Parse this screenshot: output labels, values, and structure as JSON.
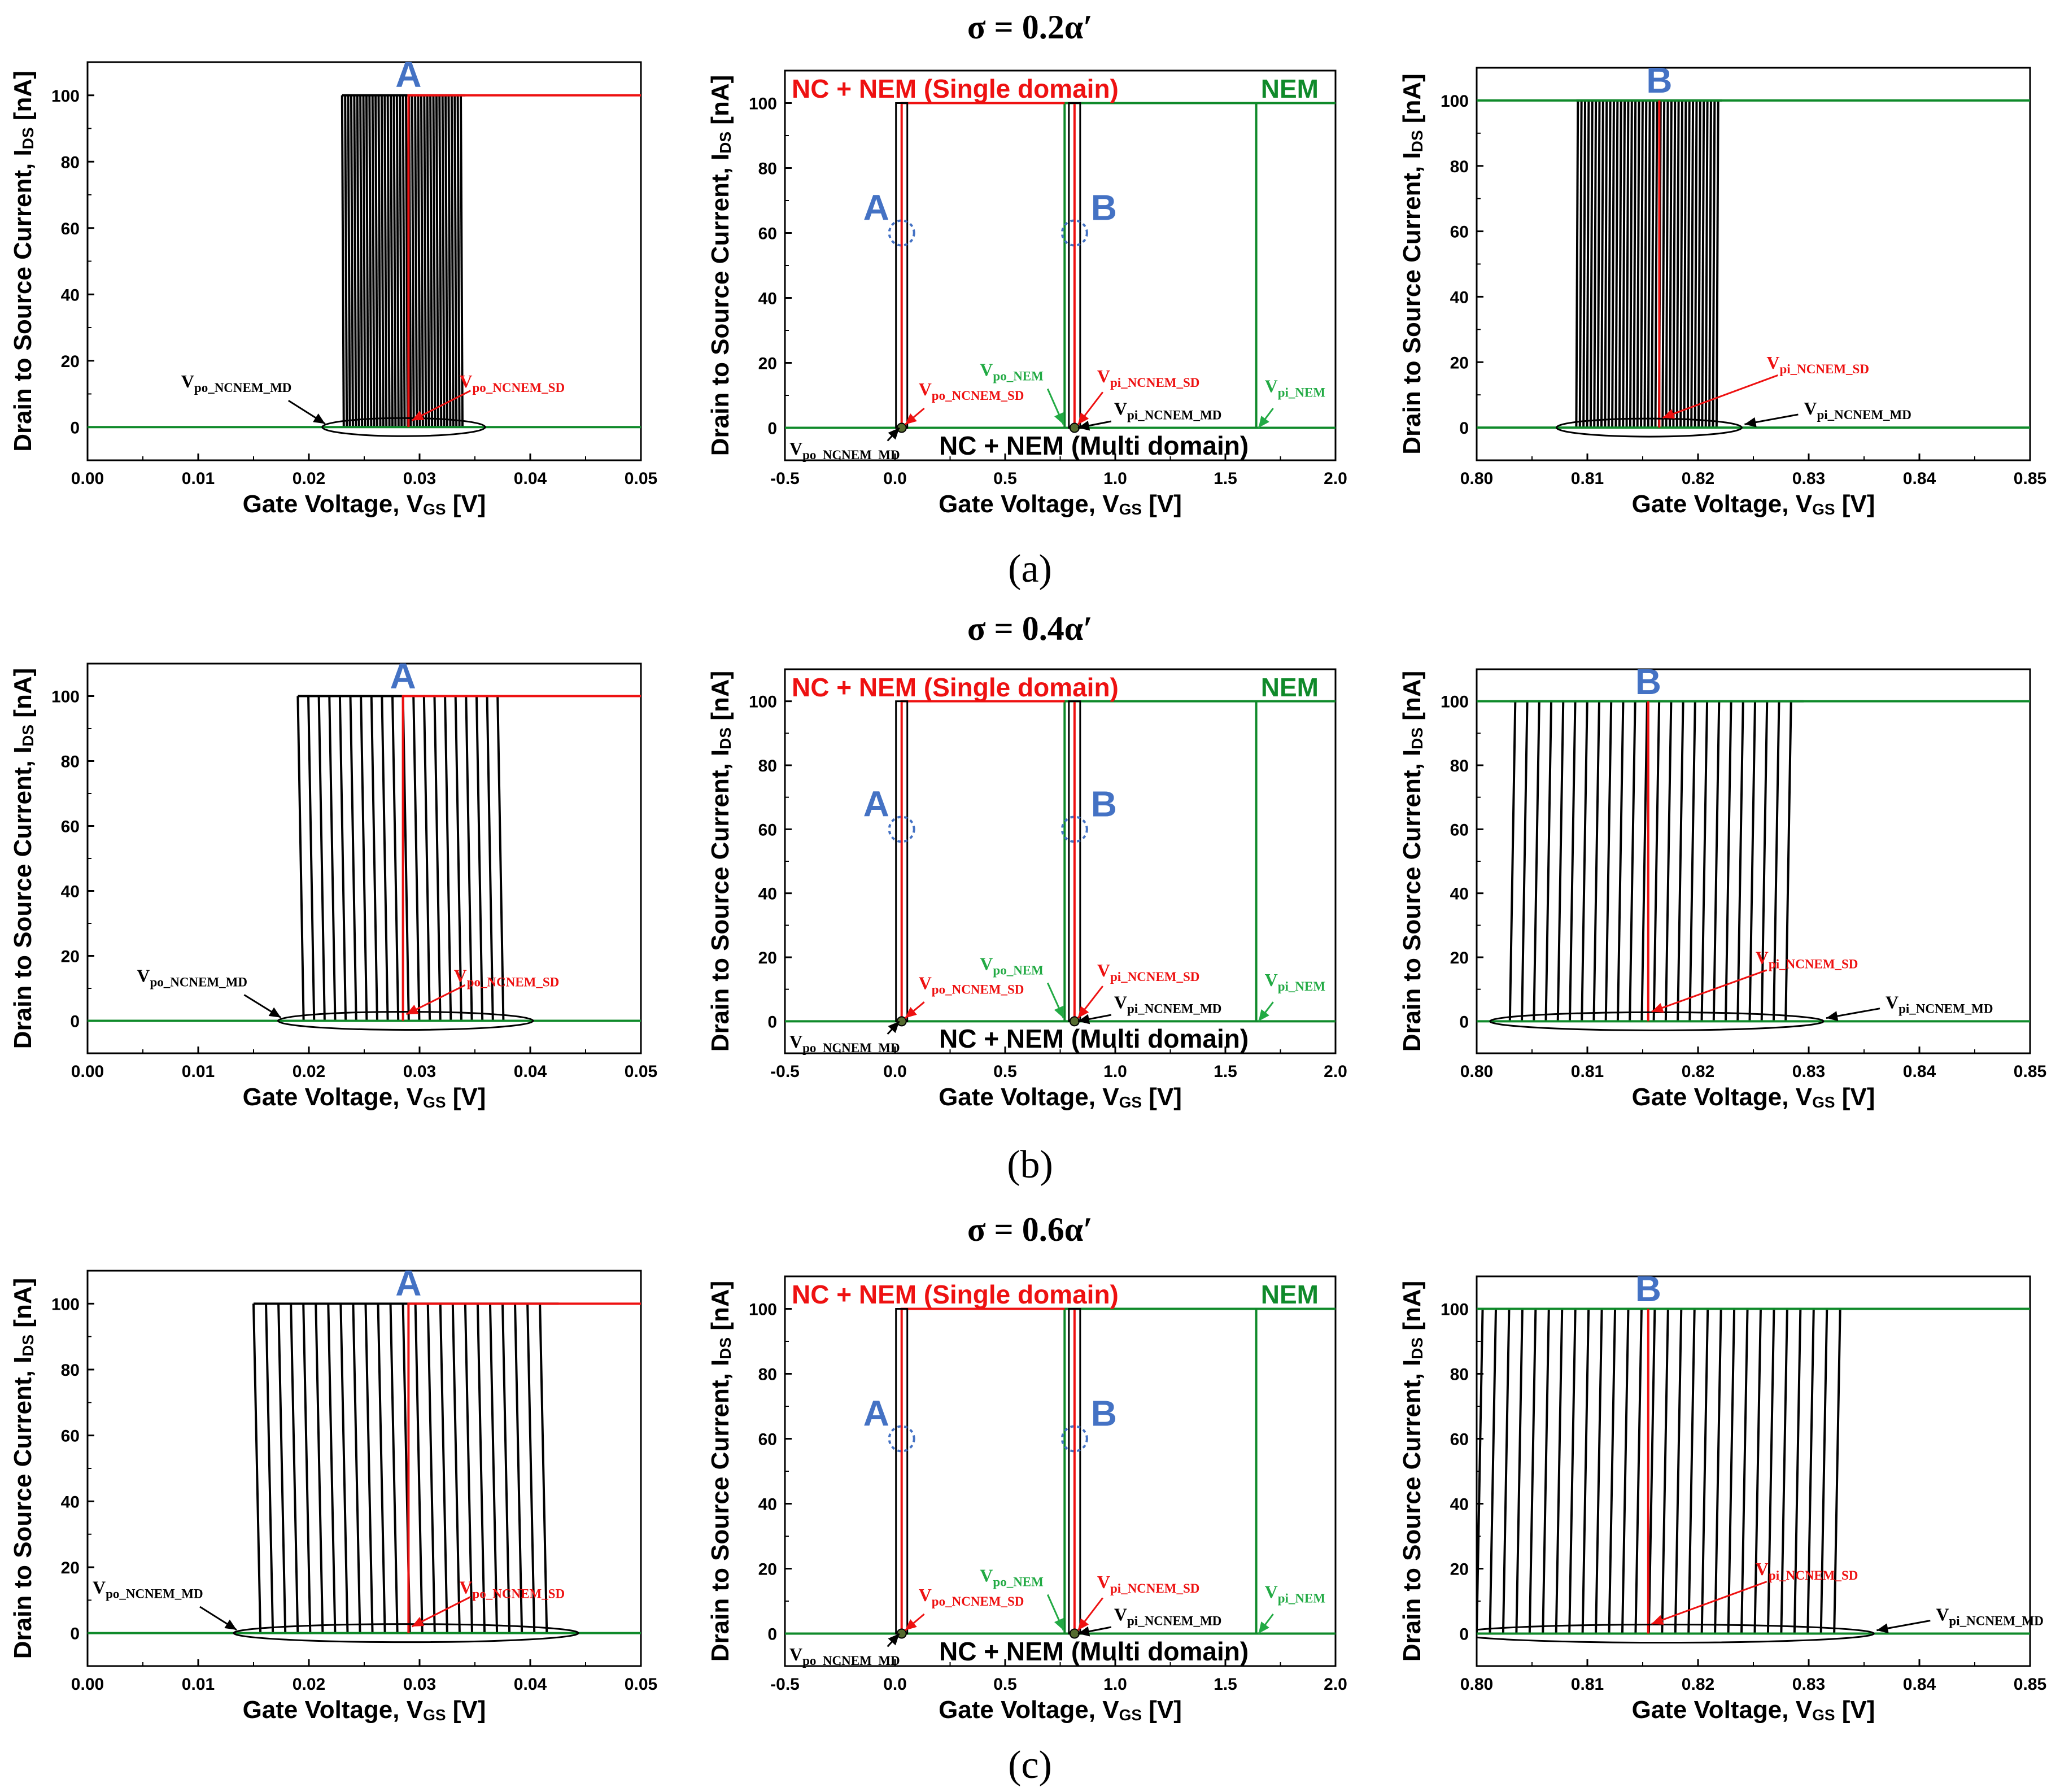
{
  "chart_data": [
    {
      "row": "a",
      "sigma_label": "σ = 0.2α′",
      "caption": "(a)",
      "panels": [
        {
          "type": "line",
          "kind": "zoom_po",
          "xlabel": "Gate Voltage, V",
          "xlabel_sub": "GS",
          "xlabel_tail": " [V]",
          "ylabel": "Drain to Source Current, I",
          "ylabel_sub": "DS",
          "ylabel_tail": " [nA]",
          "xlim": [
            0,
            0.05
          ],
          "ylim": [
            -10,
            110
          ],
          "xticks": [
            "0.00",
            "0.01",
            "0.02",
            "0.03",
            "0.04",
            "0.05"
          ],
          "yticks": [
            "0",
            "20",
            "40",
            "60",
            "80",
            "100"
          ],
          "marker_letter": "A",
          "md_range": [
            0.023,
            0.034
          ],
          "md_count": 40,
          "sd_value": 0.029,
          "ann_md": {
            "main": "V",
            "sub": "po_NCNEM_MD"
          },
          "ann_sd": {
            "main": "V",
            "sub": "po_NCNEM_SD"
          }
        },
        {
          "type": "line",
          "kind": "overview",
          "xlabel": "Gate Voltage, V",
          "xlabel_sub": "GS",
          "xlabel_tail": " [V]",
          "ylabel": "Drain to Source Current, I",
          "ylabel_sub": "DS",
          "ylabel_tail": " [nA]",
          "xlim": [
            -0.5,
            2.0
          ],
          "ylim": [
            -10,
            110
          ],
          "xticks": [
            "-0.5",
            "0.0",
            "0.5",
            "1.0",
            "1.5",
            "2.0"
          ],
          "yticks": [
            "0",
            "20",
            "40",
            "60",
            "80",
            "100"
          ],
          "legend_sd": "NC + NEM (Single domain)",
          "legend_nem": "NEM",
          "legend_md": "NC + NEM (Multi domain)",
          "letter_a": "A",
          "letter_b": "B",
          "sd_po": 0.03,
          "sd_pi": 0.815,
          "nem_po": 0.77,
          "nem_pi": 1.64,
          "ann_po_sd": {
            "main": "V",
            "sub": "po_NCNEM_SD"
          },
          "ann_pi_sd": {
            "main": "V",
            "sub": "pi_NCNEM_SD"
          },
          "ann_po_nem": {
            "main": "V",
            "sub": "po_NEM"
          },
          "ann_pi_nem": {
            "main": "V",
            "sub": "pi_NEM"
          },
          "ann_pi_md": {
            "main": "V",
            "sub": "pi_NCNEM_MD"
          },
          "ann_po_md": {
            "main": "V",
            "sub": "po_NCNEM_MD"
          }
        },
        {
          "type": "line",
          "kind": "zoom_pi",
          "xlabel": "Gate Voltage, V",
          "xlabel_sub": "GS",
          "xlabel_tail": " [V]",
          "ylabel": "Drain to Source Current, I",
          "ylabel_sub": "DS",
          "ylabel_tail": " [nA]",
          "xlim": [
            0.8,
            0.85
          ],
          "ylim": [
            -10,
            110
          ],
          "xticks": [
            "0.80",
            "0.81",
            "0.82",
            "0.83",
            "0.84",
            "0.85"
          ],
          "yticks": [
            "0",
            "20",
            "40",
            "60",
            "80",
            "100"
          ],
          "marker_letter": "B",
          "md_range": [
            0.809,
            0.822
          ],
          "md_count": 40,
          "sd_value": 0.8165,
          "ann_md": {
            "main": "V",
            "sub": "pi_NCNEM_MD"
          },
          "ann_sd": {
            "main": "V",
            "sub": "pi_NCNEM_SD"
          }
        }
      ]
    },
    {
      "row": "b",
      "sigma_label": "σ = 0.4α′",
      "caption": "(b)",
      "panels": [
        {
          "type": "line",
          "kind": "zoom_po",
          "xlabel": "Gate Voltage, V",
          "xlabel_sub": "GS",
          "xlabel_tail": " [V]",
          "ylabel": "Drain to Source Current, I",
          "ylabel_sub": "DS",
          "ylabel_tail": " [nA]",
          "xlim": [
            0,
            0.05
          ],
          "ylim": [
            -10,
            110
          ],
          "xticks": [
            "0.00",
            "0.01",
            "0.02",
            "0.03",
            "0.04",
            "0.05"
          ],
          "yticks": [
            "0",
            "20",
            "40",
            "60",
            "80",
            "100"
          ],
          "marker_letter": "A",
          "md_range": [
            0.019,
            0.038
          ],
          "md_count": 20,
          "sd_value": 0.0285,
          "ann_md": {
            "main": "V",
            "sub": "po_NCNEM_MD"
          },
          "ann_sd": {
            "main": "V",
            "sub": "po_NCNEM_SD"
          }
        },
        {
          "type": "line",
          "kind": "overview",
          "xlabel": "Gate Voltage, V",
          "xlabel_sub": "GS",
          "xlabel_tail": " [V]",
          "ylabel": "Drain to Source Current, I",
          "ylabel_sub": "DS",
          "ylabel_tail": " [nA]",
          "xlim": [
            -0.5,
            2.0
          ],
          "ylim": [
            -10,
            110
          ],
          "xticks": [
            "-0.5",
            "0.0",
            "0.5",
            "1.0",
            "1.5",
            "2.0"
          ],
          "yticks": [
            "0",
            "20",
            "40",
            "60",
            "80",
            "100"
          ],
          "legend_sd": "NC + NEM (Single domain)",
          "legend_nem": "NEM",
          "legend_md": "NC + NEM (Multi domain)",
          "letter_a": "A",
          "letter_b": "B",
          "sd_po": 0.03,
          "sd_pi": 0.815,
          "nem_po": 0.77,
          "nem_pi": 1.64,
          "ann_po_sd": {
            "main": "V",
            "sub": "po_NCNEM_SD"
          },
          "ann_pi_sd": {
            "main": "V",
            "sub": "pi_NCNEM_SD"
          },
          "ann_po_nem": {
            "main": "V",
            "sub": "po_NEM"
          },
          "ann_pi_nem": {
            "main": "V",
            "sub": "pi_NEM"
          },
          "ann_pi_md": {
            "main": "V",
            "sub": "pi_NCNEM_MD"
          },
          "ann_po_md": {
            "main": "V",
            "sub": "po_NCNEM_MD"
          }
        },
        {
          "type": "line",
          "kind": "zoom_pi",
          "xlabel": "Gate Voltage, V",
          "xlabel_sub": "GS",
          "xlabel_tail": " [V]",
          "ylabel": "Drain to Source Current, I",
          "ylabel_sub": "DS",
          "ylabel_tail": " [nA]",
          "xlim": [
            0.8,
            0.85
          ],
          "ylim": [
            -10,
            110
          ],
          "xticks": [
            "0.80",
            "0.81",
            "0.82",
            "0.83",
            "0.84",
            "0.85"
          ],
          "yticks": [
            "0",
            "20",
            "40",
            "60",
            "80",
            "100"
          ],
          "marker_letter": "B",
          "md_range": [
            0.803,
            0.829
          ],
          "md_count": 24,
          "sd_value": 0.8155,
          "ann_md": {
            "main": "V",
            "sub": "pi_NCNEM_MD"
          },
          "ann_sd": {
            "main": "V",
            "sub": "pi_NCNEM_SD"
          }
        }
      ]
    },
    {
      "row": "c",
      "sigma_label": "σ = 0.6α′",
      "caption": "(c)",
      "panels": [
        {
          "type": "line",
          "kind": "zoom_po",
          "xlabel": "Gate Voltage, V",
          "xlabel_sub": "GS",
          "xlabel_tail": " [V]",
          "ylabel": "Drain to Source Current, I",
          "ylabel_sub": "DS",
          "ylabel_tail": " [nA]",
          "xlim": [
            0,
            0.05
          ],
          "ylim": [
            -10,
            110
          ],
          "xticks": [
            "0.00",
            "0.01",
            "0.02",
            "0.03",
            "0.04",
            "0.05"
          ],
          "yticks": [
            "0",
            "20",
            "40",
            "60",
            "80",
            "100"
          ],
          "marker_letter": "A",
          "md_range": [
            0.015,
            0.042
          ],
          "md_count": 24,
          "sd_value": 0.029,
          "ann_md": {
            "main": "V",
            "sub": "po_NCNEM_MD"
          },
          "ann_sd": {
            "main": "V",
            "sub": "po_NCNEM_SD"
          }
        },
        {
          "type": "line",
          "kind": "overview",
          "xlabel": "Gate Voltage, V",
          "xlabel_sub": "GS",
          "xlabel_tail": " [V]",
          "ylabel": "Drain to Source Current, I",
          "ylabel_sub": "DS",
          "ylabel_tail": " [nA]",
          "xlim": [
            -0.5,
            2.0
          ],
          "ylim": [
            -10,
            110
          ],
          "xticks": [
            "-0.5",
            "0.0",
            "0.5",
            "1.0",
            "1.5",
            "2.0"
          ],
          "yticks": [
            "0",
            "20",
            "40",
            "60",
            "80",
            "100"
          ],
          "legend_sd": "NC + NEM (Single domain)",
          "legend_nem": "NEM",
          "legend_md": "NC + NEM (Multi domain)",
          "letter_a": "A",
          "letter_b": "B",
          "sd_po": 0.03,
          "sd_pi": 0.815,
          "nem_po": 0.77,
          "nem_pi": 1.64,
          "ann_po_sd": {
            "main": "V",
            "sub": "po_NCNEM_SD"
          },
          "ann_pi_sd": {
            "main": "V",
            "sub": "pi_NCNEM_SD"
          },
          "ann_po_nem": {
            "main": "V",
            "sub": "po_NEM"
          },
          "ann_pi_nem": {
            "main": "V",
            "sub": "pi_NEM"
          },
          "ann_pi_md": {
            "main": "V",
            "sub": "pi_NCNEM_MD"
          },
          "ann_po_md": {
            "main": "V",
            "sub": "po_NCNEM_MD"
          }
        },
        {
          "type": "line",
          "kind": "zoom_pi",
          "xlabel": "Gate Voltage, V",
          "xlabel_sub": "GS",
          "xlabel_tail": " [V]",
          "ylabel": "Drain to Source Current, I",
          "ylabel_sub": "DS",
          "ylabel_tail": " [nA]",
          "xlim": [
            0.8,
            0.85
          ],
          "ylim": [
            -10,
            110
          ],
          "xticks": [
            "0.80",
            "0.81",
            "0.82",
            "0.83",
            "0.84",
            "0.85"
          ],
          "yticks": [
            "0",
            "20",
            "40",
            "60",
            "80",
            "100"
          ],
          "marker_letter": "B",
          "md_range": [
            0.8,
            0.8335
          ],
          "md_count": 28,
          "sd_value": 0.8155,
          "ann_md": {
            "main": "V",
            "sub": "pi_NCNEM_MD"
          },
          "ann_sd": {
            "main": "V",
            "sub": "pi_NCNEM_SD"
          }
        }
      ]
    }
  ],
  "colors": {
    "single_domain": "#ee1111",
    "nem": "#0f8a2a",
    "nem_label": "#22aa44",
    "multi_domain": "#000000",
    "marker_letter": "#4472c4"
  }
}
